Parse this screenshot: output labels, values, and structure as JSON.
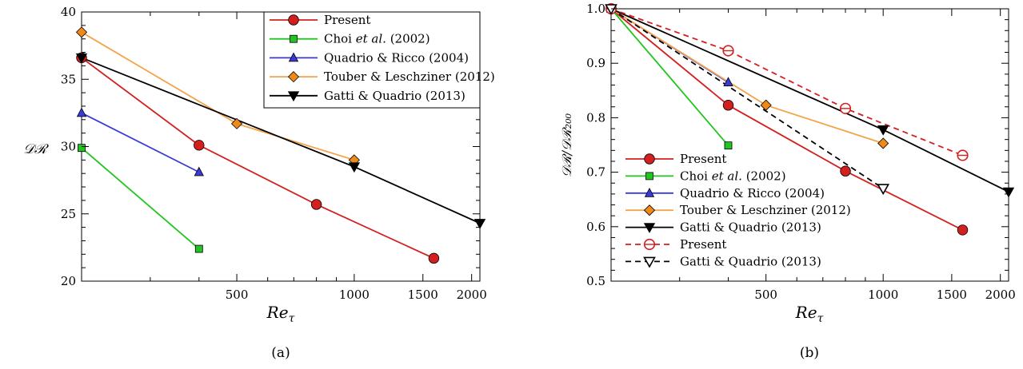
{
  "chart_data": [
    {
      "panel_label": "(a)",
      "type": "line",
      "x_scale": "log",
      "xlabel": "Re",
      "xlabel_sub": "τ",
      "ylabel": "𝒟ℛ",
      "xlim": [
        200,
        2100
      ],
      "ylim": [
        20,
        40
      ],
      "xticks": [
        500,
        1000,
        1500,
        2000
      ],
      "xtick_labels": [
        "500",
        "1000",
        "1500",
        "2000"
      ],
      "yticks": [
        20,
        25,
        30,
        35,
        40
      ],
      "ytick_labels": [
        "20",
        "25",
        "30",
        "35",
        "40"
      ],
      "legend_placement": "top-right",
      "series": [
        {
          "name": "Present",
          "color": "#d41f1f",
          "marker": "circle",
          "dashed": false,
          "filled": true,
          "x": [
            200,
            400,
            800,
            1600
          ],
          "y": [
            36.6,
            30.1,
            25.7,
            21.7
          ]
        },
        {
          "name": "Choi et al. (2002)",
          "color": "#22c422",
          "marker": "square",
          "dashed": false,
          "filled": true,
          "x": [
            200,
            400
          ],
          "y": [
            29.9,
            22.4
          ]
        },
        {
          "name": "Quadrio & Ricco (2004)",
          "color": "#3a3ad8",
          "marker": "triangle-up",
          "dashed": false,
          "filled": true,
          "x": [
            200,
            400
          ],
          "y": [
            32.5,
            28.1
          ]
        },
        {
          "name": "Touber & Leschziner (2012)",
          "color": "#f5a34a",
          "marker": "diamond",
          "dashed": false,
          "filled": true,
          "marker_fill": "#ef8a1a",
          "x": [
            200,
            500,
            1000
          ],
          "y": [
            38.5,
            31.7,
            29.0
          ]
        },
        {
          "name": "Gatti & Quadrio (2013)",
          "color": "#000000",
          "marker": "triangle-down",
          "dashed": false,
          "filled": true,
          "x": [
            200,
            1000,
            2100
          ],
          "y": [
            36.6,
            28.5,
            24.3
          ]
        }
      ]
    },
    {
      "panel_label": "(b)",
      "type": "line",
      "x_scale": "log",
      "xlabel": "Re",
      "xlabel_sub": "τ",
      "ylabel": "𝒟ℛ/𝒟ℛ₂₀₀",
      "xlim": [
        200,
        2100
      ],
      "ylim": [
        0.5,
        1.0
      ],
      "xticks": [
        500,
        1000,
        1500,
        2000
      ],
      "xtick_labels": [
        "500",
        "1000",
        "1500",
        "2000"
      ],
      "yticks": [
        0.5,
        0.6,
        0.7,
        0.8,
        0.9,
        1.0
      ],
      "ytick_labels": [
        "0.5",
        "0.6",
        "0.7",
        "0.8",
        "0.9",
        "1.0"
      ],
      "legend_placement": "bottom-left",
      "series": [
        {
          "name": "Present",
          "color": "#d41f1f",
          "marker": "circle",
          "dashed": false,
          "filled": true,
          "x": [
            200,
            400,
            800,
            1600
          ],
          "y": [
            1.0,
            0.823,
            0.702,
            0.594
          ]
        },
        {
          "name": "Choi et al. (2002)",
          "color": "#22c422",
          "marker": "square",
          "dashed": false,
          "filled": true,
          "x": [
            200,
            400
          ],
          "y": [
            1.0,
            0.749
          ]
        },
        {
          "name": "Quadrio & Ricco (2004)",
          "color": "#3a3ad8",
          "marker": "triangle-up",
          "dashed": false,
          "filled": true,
          "x": [
            200,
            400
          ],
          "y": [
            1.0,
            0.865
          ]
        },
        {
          "name": "Touber & Leschziner (2012)",
          "color": "#f5a34a",
          "marker": "diamond",
          "dashed": false,
          "filled": true,
          "marker_fill": "#ef8a1a",
          "x": [
            200,
            500,
            1000
          ],
          "y": [
            1.0,
            0.823,
            0.753
          ]
        },
        {
          "name": "Gatti & Quadrio (2013)",
          "color": "#000000",
          "marker": "triangle-down",
          "dashed": false,
          "filled": true,
          "x": [
            200,
            1000,
            2100
          ],
          "y": [
            1.0,
            0.778,
            0.664
          ]
        },
        {
          "name": "Present",
          "color": "#d41f1f",
          "marker": "circle-open",
          "dashed": true,
          "filled": false,
          "x": [
            200,
            400,
            800,
            1600
          ],
          "y": [
            1.0,
            0.923,
            0.817,
            0.731
          ]
        },
        {
          "name": "Gatti & Quadrio (2013)",
          "color": "#000000",
          "marker": "triangle-down-open",
          "dashed": true,
          "filled": false,
          "x": [
            200,
            1000
          ],
          "y": [
            1.0,
            0.67
          ]
        }
      ]
    }
  ]
}
